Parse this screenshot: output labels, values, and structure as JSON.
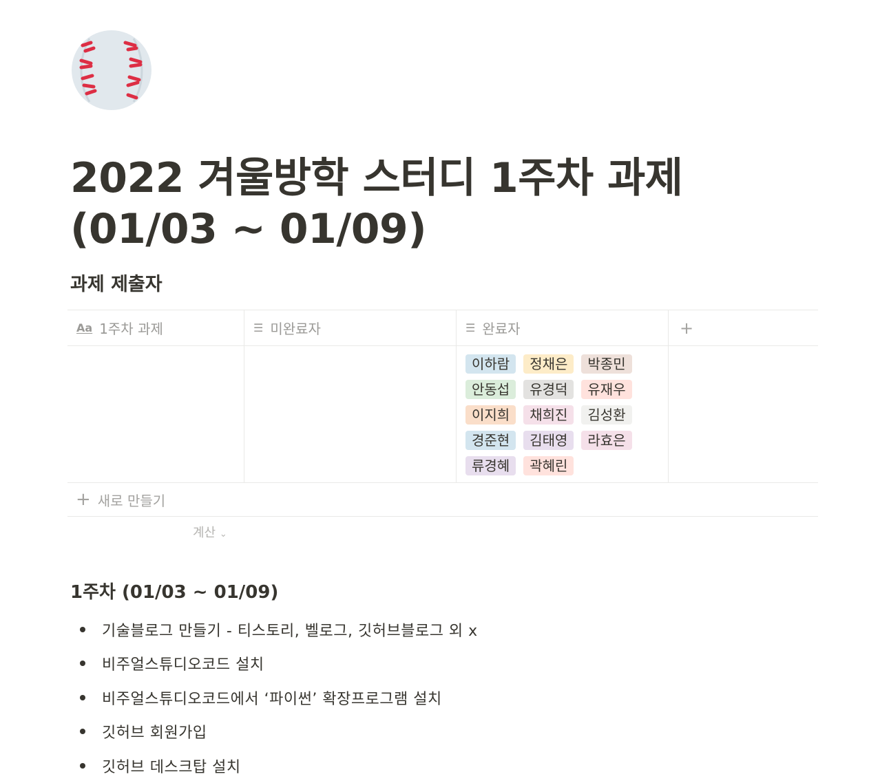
{
  "page": {
    "icon": "baseball-icon",
    "title": "2022 겨울방학 스터디 1주차 과제 (01/03 ~ 01/09)"
  },
  "submitters": {
    "heading": "과제 제출자",
    "columns": [
      {
        "icon": "title-aa-icon",
        "label": "1주차 과제"
      },
      {
        "icon": "list-icon",
        "label": "미완료자"
      },
      {
        "icon": "list-icon",
        "label": "완료자"
      }
    ],
    "add_column": "+",
    "row": {
      "title": "",
      "incomplete": [],
      "complete": [
        {
          "name": "이하람",
          "color": "#d3e5ef"
        },
        {
          "name": "정채은",
          "color": "#fdecc8"
        },
        {
          "name": "박종민",
          "color": "#eee0da"
        },
        {
          "name": "안동섭",
          "color": "#dbeddb"
        },
        {
          "name": "유경덕",
          "color": "#e3e2e0"
        },
        {
          "name": "유재우",
          "color": "#ffe2dd"
        },
        {
          "name": "이지희",
          "color": "#fadec9"
        },
        {
          "name": "채희진",
          "color": "#f5e0e9"
        },
        {
          "name": "김성환",
          "color": "#f1f1ef"
        },
        {
          "name": "경준현",
          "color": "#d3e5ef"
        },
        {
          "name": "김태영",
          "color": "#e8deee"
        },
        {
          "name": "라효은",
          "color": "#f5e0e9"
        },
        {
          "name": "류경혜",
          "color": "#e8deee"
        },
        {
          "name": "곽혜린",
          "color": "#ffe2dd"
        }
      ]
    },
    "new_label": "새로 만들기",
    "calculate_label": "계산"
  },
  "week": {
    "heading": "1주차 (01/03 ~ 01/09)",
    "items": [
      "기술블로그 만들기 - 티스토리, 벨로그, 깃허브블로그 외 x",
      "비주얼스튜디오코드 설치",
      "비주얼스튜디오코드에서 ‘파이썬’ 확장프로그램 설치",
      "깃허브 회원가입",
      "깃허브 데스크탑 설치"
    ]
  }
}
